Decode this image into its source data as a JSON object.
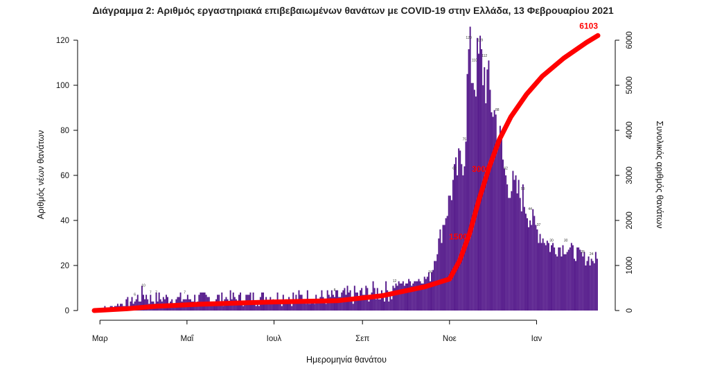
{
  "chart_data": {
    "type": "bar",
    "title": "Διάγραμμα 2: Αριθμός εργαστηριακά επιβεβαιωμένων θανάτων με COVID-19 στην Ελλάδα, 13 Φεβρουαρίου 2021",
    "xlabel": "Ημερομηνία θανάτου",
    "ylabel": "Αριθμός νέων θανάτων",
    "y2label": "Συνολικός αριθμός θανάτων",
    "xticks": [
      "Μαρ",
      "Μαΐ",
      "Ιουλ",
      "Σεπ",
      "Νοε",
      "Ιαν"
    ],
    "yticks": [
      0,
      20,
      40,
      60,
      80,
      100,
      120
    ],
    "y2ticks": [
      0,
      1000,
      2000,
      3000,
      4000,
      5000,
      6000
    ],
    "ylim": [
      0,
      125
    ],
    "y2lim": [
      0,
      6250
    ],
    "start_date": "2020-02-26",
    "end_date": "2021-02-13",
    "series": [
      {
        "name": "Νέοι θάνατοι",
        "type": "bar",
        "color": "#551a8b",
        "peaks": [
          {
            "date": "2020-03-25",
            "value": 6
          },
          {
            "date": "2020-03-31",
            "value": 10
          },
          {
            "date": "2020-04-05",
            "value": 7
          },
          {
            "date": "2020-04-09",
            "value": 7
          },
          {
            "date": "2020-04-29",
            "value": 7
          },
          {
            "date": "2020-08-12",
            "value": 8
          },
          {
            "date": "2020-09-23",
            "value": 12
          },
          {
            "date": "2020-10-18",
            "value": 16
          },
          {
            "date": "2020-11-04",
            "value": 62
          },
          {
            "date": "2020-11-11",
            "value": 75
          },
          {
            "date": "2020-11-14",
            "value": 120
          },
          {
            "date": "2020-11-18",
            "value": 110
          },
          {
            "date": "2020-11-22",
            "value": 119
          },
          {
            "date": "2020-11-25",
            "value": 112
          },
          {
            "date": "2020-12-04",
            "value": 88
          },
          {
            "date": "2020-12-10",
            "value": 62
          },
          {
            "date": "2020-12-22",
            "value": 53
          },
          {
            "date": "2020-12-27",
            "value": 44
          },
          {
            "date": "2021-01-02",
            "value": 37
          },
          {
            "date": "2021-01-11",
            "value": 30
          },
          {
            "date": "2021-01-21",
            "value": 30
          },
          {
            "date": "2021-02-02",
            "value": 25
          },
          {
            "date": "2021-02-08",
            "value": 24
          }
        ]
      },
      {
        "name": "Συνολικοί θάνατοι",
        "type": "line",
        "axis": "right",
        "color": "#ff0000",
        "points": [
          {
            "date": "2020-02-26",
            "value": 0
          },
          {
            "date": "2020-03-20",
            "value": 40
          },
          {
            "date": "2020-04-10",
            "value": 95
          },
          {
            "date": "2020-05-10",
            "value": 140
          },
          {
            "date": "2020-07-01",
            "value": 190
          },
          {
            "date": "2020-08-15",
            "value": 220
          },
          {
            "date": "2020-09-15",
            "value": 330
          },
          {
            "date": "2020-10-15",
            "value": 530
          },
          {
            "date": "2020-11-01",
            "value": 700
          },
          {
            "date": "2020-11-08",
            "value": 1100
          },
          {
            "date": "2020-11-15",
            "value": 1700
          },
          {
            "date": "2020-11-22",
            "value": 2500
          },
          {
            "date": "2020-11-29",
            "value": 3200
          },
          {
            "date": "2020-12-06",
            "value": 3800
          },
          {
            "date": "2020-12-14",
            "value": 4300
          },
          {
            "date": "2020-12-25",
            "value": 4800
          },
          {
            "date": "2021-01-05",
            "value": 5200
          },
          {
            "date": "2021-01-20",
            "value": 5600
          },
          {
            "date": "2021-02-05",
            "value": 5950
          },
          {
            "date": "2021-02-13",
            "value": 6103
          }
        ]
      }
    ],
    "annotations": [
      {
        "text": "1500",
        "date": "2020-11-12",
        "value": 1500
      },
      {
        "text": "3000",
        "date": "2020-11-28",
        "value": 3000
      },
      {
        "text": "6103",
        "date": "2021-02-13",
        "value": 6103
      }
    ],
    "grid": false,
    "legend": "none"
  }
}
